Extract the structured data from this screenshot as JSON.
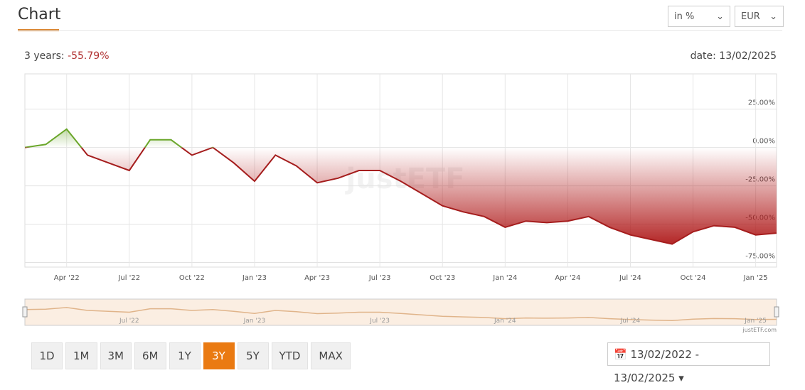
{
  "header": {
    "title": "Chart",
    "unit_select": "in %",
    "currency_select": "EUR",
    "period_label": "3 years:",
    "performance": "-55.79%",
    "date_label": "date: 13/02/2025"
  },
  "chart_data": {
    "type": "line",
    "categories": [
      null,
      null,
      "Apr '22",
      null,
      null,
      "Jul '22",
      null,
      null,
      "Oct '22",
      null,
      null,
      "Jan '23",
      null,
      null,
      "Apr '23",
      null,
      null,
      "Jul '23",
      null,
      null,
      "Oct '23",
      null,
      null,
      "Jan '24",
      null,
      null,
      "Apr '24",
      null,
      null,
      "Jul '24",
      null,
      null,
      "Oct '24",
      null,
      null,
      "Jan '25",
      null
    ],
    "values": [
      0,
      2,
      12,
      -5,
      -10,
      -15,
      5,
      5,
      -5,
      0,
      -10,
      -22,
      -5,
      -12,
      -23,
      -20,
      -15,
      -15,
      -22,
      -30,
      -38,
      -42,
      -45,
      -52,
      -48,
      -49,
      -48,
      -45,
      -52,
      -57,
      -60,
      -63,
      -55,
      -51,
      -52,
      -57,
      -55.79
    ],
    "color_up": "#6aa62a",
    "color_down": "#a51d1d",
    "ylim": [
      -78,
      48
    ],
    "yticks": [
      {
        "value": 25,
        "label": "25.00%"
      },
      {
        "value": 0,
        "label": "0.00%"
      },
      {
        "value": -25,
        "label": "-25.00%"
      },
      {
        "value": -50,
        "label": "-50.00%"
      },
      {
        "value": -75,
        "label": "-75.00%"
      }
    ],
    "grid": true,
    "watermark": "justETF"
  },
  "navigator": {
    "labels": [
      "Jul '22",
      "Jan '23",
      "Jul '23",
      "Jan '24",
      "Jul '24",
      "Jan '25"
    ],
    "credit": "justETF.com"
  },
  "buttons": [
    "1D",
    "1M",
    "3M",
    "6M",
    "1Y",
    "3Y",
    "5Y",
    "YTD",
    "MAX"
  ],
  "active_button": "3Y",
  "date_range": "13/02/2022 - 13/02/2025"
}
